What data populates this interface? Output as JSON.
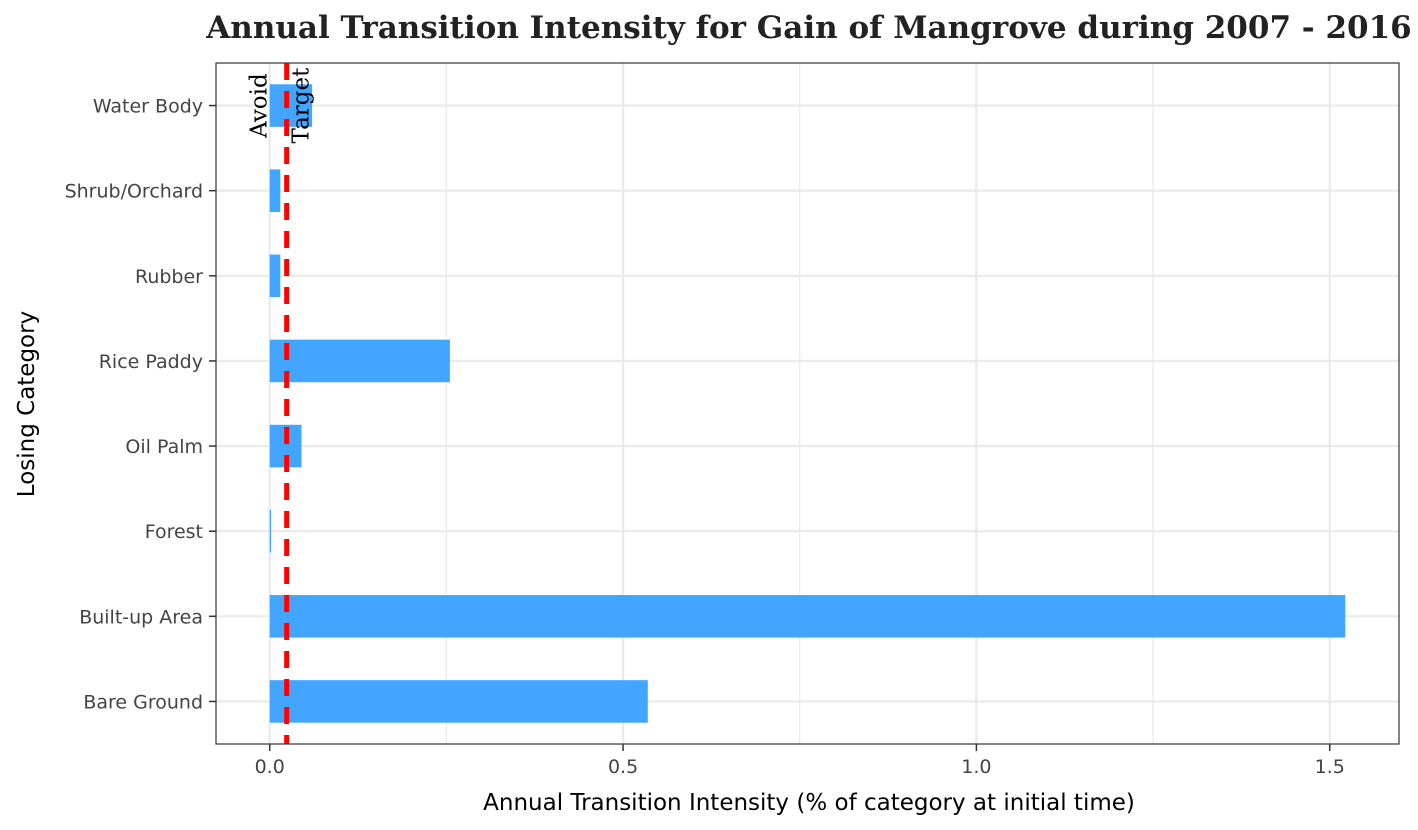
{
  "chart_data": {
    "type": "bar",
    "orientation": "horizontal",
    "title": "Annual Transition Intensity for Gain of  Mangrove during 2007 - 2016",
    "xlabel": "Annual Transition Intensity (% of category at initial time)",
    "ylabel": "Losing Category",
    "categories": [
      "Bare Ground",
      "Built-up Area",
      "Forest",
      "Oil Palm",
      "Rice Paddy",
      "Rubber",
      "Shrub/Orchard",
      "Water Body"
    ],
    "values": [
      0.535,
      1.522,
      0.002,
      0.045,
      0.255,
      0.015,
      0.015,
      0.06
    ],
    "xlim": [
      -0.076,
      1.598
    ],
    "xticks": [
      0,
      0.5,
      1.0,
      1.5
    ],
    "xtick_labels": [
      "0.0",
      "0.5",
      "1.0",
      "1.5"
    ],
    "grid": true,
    "reference_line": {
      "value": 0.024,
      "style": "dashed"
    },
    "annotations": [
      {
        "text": "Avoid",
        "category": "Water Body",
        "side": "left of line",
        "rotation": -90
      },
      {
        "text": "Target",
        "category": "Water Body",
        "side": "right of line",
        "rotation": -90
      }
    ],
    "colors": {
      "bar": "#42A5FF",
      "reference_line": "#FF0000",
      "grid": "#EBEBEB"
    }
  }
}
